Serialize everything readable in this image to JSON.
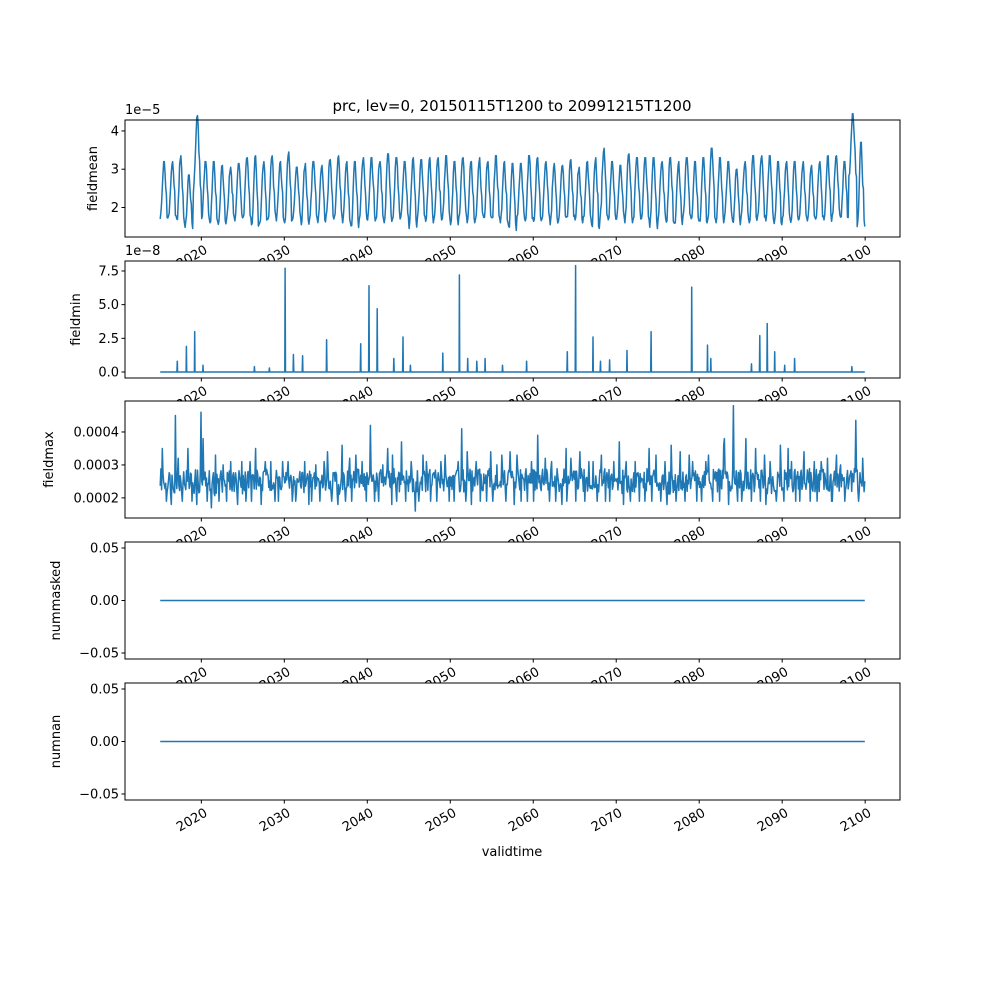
{
  "chart_data": {
    "type": "line",
    "title": "prc, lev=0, 20150115T1200 to 20991215T1200",
    "xlabel": "validtime",
    "x_range_years": [
      2015.04,
      2099.96
    ],
    "xlim": [
      2010.8,
      2104.2
    ],
    "x_ticks": [
      "2020",
      "2030",
      "2040",
      "2050",
      "2060",
      "2070",
      "2080",
      "2090",
      "2100"
    ],
    "line_color": "#1f77b4",
    "panels": [
      {
        "ylabel": "fieldmean",
        "offset_label": "1e−5",
        "ylim": [
          1.229,
          4.286
        ],
        "y_ticks": [
          {
            "v": 2,
            "label": "2"
          },
          {
            "v": 3,
            "label": "3"
          },
          {
            "v": 4,
            "label": "4"
          }
        ],
        "kind": "seasonal",
        "scale": 1e-05,
        "years_start": 2015,
        "annual_peak": [
          3.2,
          3.2,
          3.35,
          2.85,
          4.4,
          3.2,
          3.2,
          3.1,
          3.05,
          3.15,
          3.3,
          3.35,
          3.2,
          3.35,
          3.2,
          3.45,
          3.05,
          3.15,
          3.2,
          3.1,
          3.25,
          3.35,
          3.2,
          3.2,
          3.3,
          3.3,
          3.2,
          3.4,
          3.3,
          3.2,
          3.3,
          3.25,
          3.3,
          3.3,
          3.35,
          3.2,
          3.3,
          3.2,
          3.3,
          3.2,
          3.35,
          3.2,
          3.15,
          3.15,
          3.35,
          3.3,
          3.2,
          3.15,
          3.1,
          3.25,
          3.05,
          3.2,
          3.3,
          3.55,
          3.2,
          3.1,
          3.4,
          3.3,
          3.3,
          3.3,
          3.2,
          3.3,
          3.2,
          3.3,
          3.2,
          3.3,
          3.55,
          3.3,
          3.2,
          3.0,
          3.2,
          3.35,
          3.35,
          3.35,
          3.2,
          3.2,
          3.2,
          3.2,
          3.1,
          3.2,
          3.35,
          3.35,
          3.2,
          4.45,
          3.7
        ],
        "annual_trough": [
          1.7,
          1.75,
          1.6,
          1.45,
          2.4,
          1.7,
          1.6,
          1.5,
          1.7,
          1.65,
          1.75,
          1.45,
          1.6,
          1.7,
          1.65,
          1.6,
          1.7,
          1.55,
          1.7,
          1.6,
          1.7,
          1.75,
          1.6,
          1.45,
          1.7,
          1.65,
          1.7,
          1.6,
          1.7,
          1.75,
          1.45,
          1.7,
          1.6,
          1.65,
          1.7,
          1.55,
          1.7,
          1.6,
          1.7,
          1.65,
          1.7,
          1.6,
          1.4,
          1.7,
          1.65,
          1.6,
          1.7,
          1.55,
          1.65,
          1.7,
          1.6,
          1.7,
          1.45,
          1.7,
          1.65,
          1.7,
          1.6,
          1.7,
          1.65,
          1.45,
          1.7,
          1.6,
          1.5,
          1.7,
          1.65,
          1.6,
          1.7,
          1.6,
          1.7,
          1.55,
          1.7,
          1.6,
          1.7,
          1.65,
          1.55,
          1.7,
          1.6,
          1.7,
          1.65,
          1.7,
          1.6,
          1.8,
          1.7,
          2.8,
          1.5
        ]
      },
      {
        "ylabel": "fieldmin",
        "offset_label": "1e−8",
        "ylim": [
          -0.445,
          8.24
        ],
        "y_ticks": [
          {
            "v": 0,
            "label": "0.0"
          },
          {
            "v": 2.5,
            "label": "2.5"
          },
          {
            "v": 5,
            "label": "5.0"
          },
          {
            "v": 7.5,
            "label": "7.5"
          }
        ],
        "kind": "spikes",
        "scale": 1e-08,
        "baseline": 0,
        "spikes": [
          [
            2017.1,
            0.8
          ],
          [
            2018.2,
            1.9
          ],
          [
            2019.2,
            3.0
          ],
          [
            2020.2,
            0.5
          ],
          [
            2026.4,
            0.4
          ],
          [
            2028.2,
            0.3
          ],
          [
            2030.1,
            7.7
          ],
          [
            2031.1,
            1.3
          ],
          [
            2032.2,
            1.2
          ],
          [
            2035.1,
            2.4
          ],
          [
            2039.2,
            2.1
          ],
          [
            2040.2,
            6.4
          ],
          [
            2041.2,
            4.7
          ],
          [
            2043.2,
            1.0
          ],
          [
            2044.3,
            2.6
          ],
          [
            2045.2,
            0.5
          ],
          [
            2049.1,
            1.4
          ],
          [
            2051.1,
            7.2
          ],
          [
            2052.1,
            1.0
          ],
          [
            2053.2,
            0.8
          ],
          [
            2054.2,
            1.0
          ],
          [
            2056.3,
            0.5
          ],
          [
            2059.2,
            0.8
          ],
          [
            2064.1,
            1.5
          ],
          [
            2065.1,
            7.9
          ],
          [
            2067.2,
            2.6
          ],
          [
            2068.1,
            0.8
          ],
          [
            2069.2,
            0.9
          ],
          [
            2071.3,
            1.6
          ],
          [
            2074.2,
            3.0
          ],
          [
            2079.1,
            6.3
          ],
          [
            2081.0,
            2.0
          ],
          [
            2081.4,
            1.0
          ],
          [
            2086.3,
            0.6
          ],
          [
            2087.3,
            2.7
          ],
          [
            2088.2,
            3.6
          ],
          [
            2089.1,
            1.5
          ],
          [
            2090.3,
            0.5
          ],
          [
            2091.5,
            1.0
          ],
          [
            2098.4,
            0.4
          ]
        ]
      },
      {
        "ylabel": "fieldmax",
        "ylim": [
          0.000139,
          0.000494
        ],
        "y_ticks": [
          {
            "v": 0.0002,
            "label": "0.0002"
          },
          {
            "v": 0.0003,
            "label": "0.0003"
          },
          {
            "v": 0.0004,
            "label": "0.0004"
          }
        ],
        "kind": "noisy",
        "years_start": 2015,
        "annual_max": [
          0.00035,
          0.00045,
          0.00032,
          0.00035,
          0.00046,
          0.00038,
          0.00033,
          0.0003,
          0.00031,
          0.00031,
          0.00031,
          0.00035,
          0.00031,
          0.00031,
          0.00031,
          0.00031,
          0.00028,
          0.00031,
          0.0003,
          0.00031,
          0.00034,
          0.00036,
          0.00032,
          0.00033,
          0.00031,
          0.00042,
          0.0003,
          0.00035,
          0.00033,
          0.00037,
          0.00031,
          0.00033,
          0.00031,
          0.00031,
          0.00033,
          0.00031,
          0.00041,
          0.00034,
          0.00031,
          0.00034,
          0.0003,
          0.00033,
          0.00034,
          0.00033,
          0.00031,
          0.00039,
          0.00032,
          0.00031,
          0.00035,
          0.00032,
          0.00034,
          0.00031,
          0.00031,
          0.00033,
          0.00031,
          0.00037,
          0.00031,
          0.00031,
          0.00035,
          0.00033,
          0.00031,
          0.00036,
          0.00034,
          0.00033,
          0.00031,
          0.00031,
          0.00033,
          0.00036,
          0.00038,
          0.00048,
          0.00038,
          0.00035,
          0.00033,
          0.00031,
          0.00036,
          0.00035,
          0.00031,
          0.00034,
          0.00031,
          0.00031,
          0.00032,
          0.00033,
          0.0003,
          0.000435,
          0.00032
        ],
        "annual_min": [
          0.00019,
          0.00018,
          0.00019,
          0.00019,
          0.00018,
          0.00019,
          0.00017,
          0.00019,
          0.00019,
          0.00018,
          0.00019,
          0.00019,
          0.00018,
          0.00019,
          0.00019,
          0.00019,
          0.00019,
          0.00018,
          0.00019,
          0.00019,
          0.00019,
          0.00018,
          0.00019,
          0.00019,
          0.00019,
          0.00019,
          0.00019,
          0.00018,
          0.00019,
          0.00019,
          0.00016,
          0.00019,
          0.00019,
          0.00019,
          0.00019,
          0.00019,
          0.00019,
          0.00018,
          0.00019,
          0.00019,
          0.00019,
          0.00019,
          0.00018,
          0.00019,
          0.00019,
          0.00019,
          0.00019,
          0.00019,
          0.00018,
          0.00019,
          0.00019,
          0.00019,
          0.00019,
          0.00019,
          0.00019,
          0.00018,
          0.00019,
          0.00019,
          0.00019,
          0.00019,
          0.00019,
          0.00018,
          0.00019,
          0.00019,
          0.00019,
          0.00019,
          0.00019,
          0.00019,
          0.00018,
          0.00019,
          0.00019,
          0.00019,
          0.00019,
          0.00018,
          0.00019,
          0.00019,
          0.00019,
          0.00019,
          0.00019,
          0.00019,
          0.00019,
          0.00019,
          0.00019,
          0.00022,
          0.00019
        ]
      },
      {
        "ylabel": "nummasked",
        "ylim": [
          -0.0557,
          0.0557
        ],
        "y_ticks": [
          {
            "v": -0.05,
            "label": "−0.05"
          },
          {
            "v": 0,
            "label": "0.00"
          },
          {
            "v": 0.05,
            "label": "0.05"
          }
        ],
        "kind": "constant",
        "value": 0
      },
      {
        "ylabel": "numnan",
        "ylim": [
          -0.0557,
          0.0557
        ],
        "y_ticks": [
          {
            "v": -0.05,
            "label": "−0.05"
          },
          {
            "v": 0,
            "label": "0.00"
          },
          {
            "v": 0.05,
            "label": "0.05"
          }
        ],
        "kind": "constant",
        "value": 0
      }
    ]
  }
}
